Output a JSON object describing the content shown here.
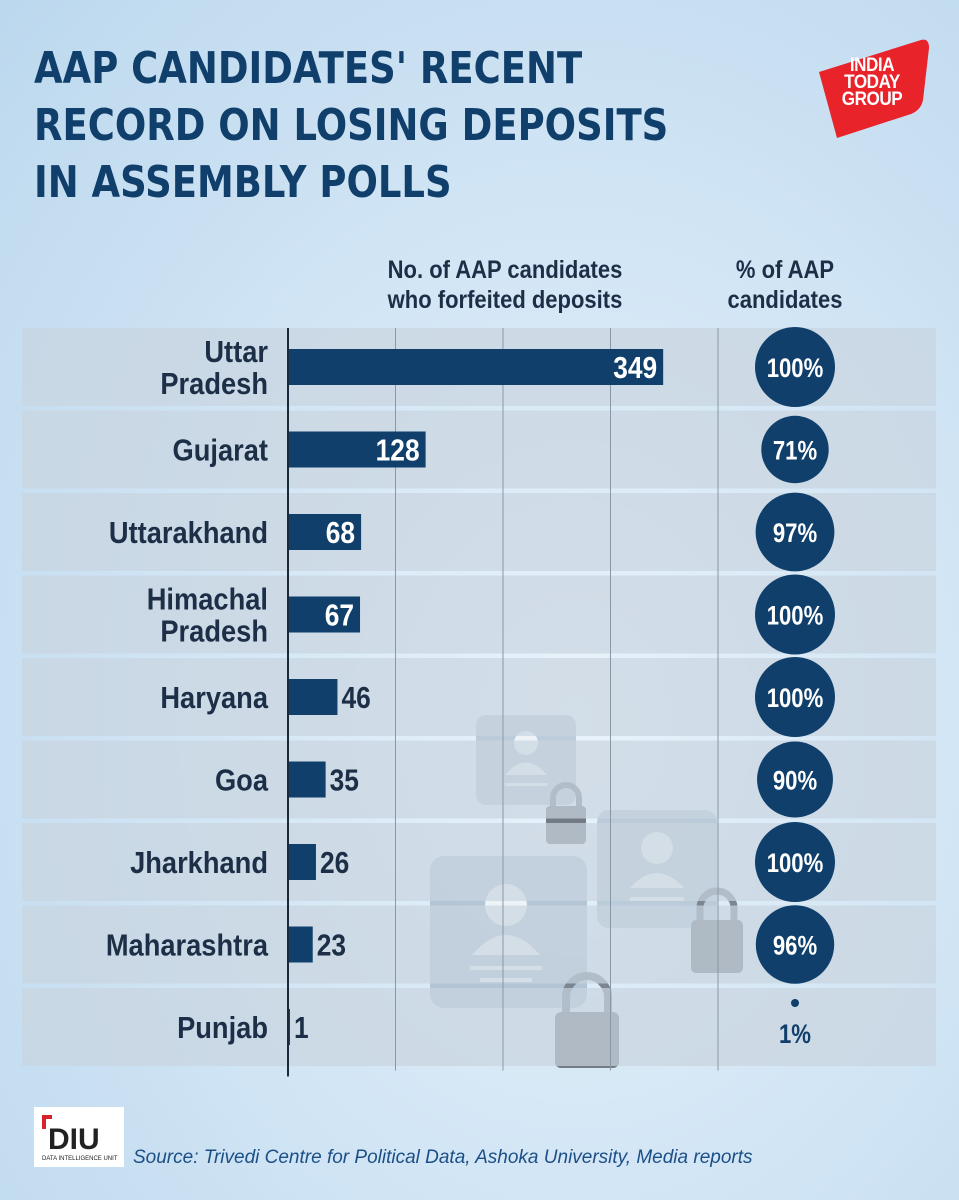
{
  "title_lines": [
    "AAP CANDIDATES' RECENT",
    "RECORD ON LOSING DEPOSITS",
    "IN ASSEMBLY POLLS"
  ],
  "logo": {
    "lines": [
      "INDIA",
      "TODAY",
      "GROUP"
    ],
    "color": "#e8232a"
  },
  "column_headers": {
    "count": [
      "No. of AAP candidates",
      "who forfeited deposits"
    ],
    "percent": [
      "% of AAP",
      "candidates"
    ]
  },
  "colors": {
    "bar": "#0f3f6a",
    "circle": "#0f3f6a",
    "row_band": "#c9d4df",
    "title": "#103f6b"
  },
  "chart_data": {
    "type": "bar",
    "orientation": "horizontal",
    "categories": [
      [
        "Uttar",
        "Pradesh"
      ],
      [
        "Gujarat"
      ],
      [
        "Uttarakhand"
      ],
      [
        "Himachal",
        "Pradesh"
      ],
      [
        "Haryana"
      ],
      [
        "Goa"
      ],
      [
        "Jharkhand"
      ],
      [
        "Maharashtra"
      ],
      [
        "Punjab"
      ]
    ],
    "values": [
      349,
      128,
      68,
      67,
      46,
      35,
      26,
      23,
      1
    ],
    "value_labels": [
      "349",
      "128",
      "68",
      "67",
      "46",
      "35",
      "26",
      "23",
      "1"
    ],
    "percent_values": [
      100,
      71,
      97,
      100,
      100,
      90,
      100,
      96,
      1
    ],
    "percent_labels": [
      "100%",
      "71%",
      "97%",
      "100%",
      "100%",
      "90%",
      "100%",
      "96%",
      "1%"
    ],
    "xlim": [
      0,
      400
    ],
    "grid": true
  },
  "source": "Source: Trivedi Centre for Political Data, Ashoka University, Media reports",
  "diu_logo": {
    "text": "DIU",
    "subtext": "DATA INTELLIGENCE UNIT"
  }
}
